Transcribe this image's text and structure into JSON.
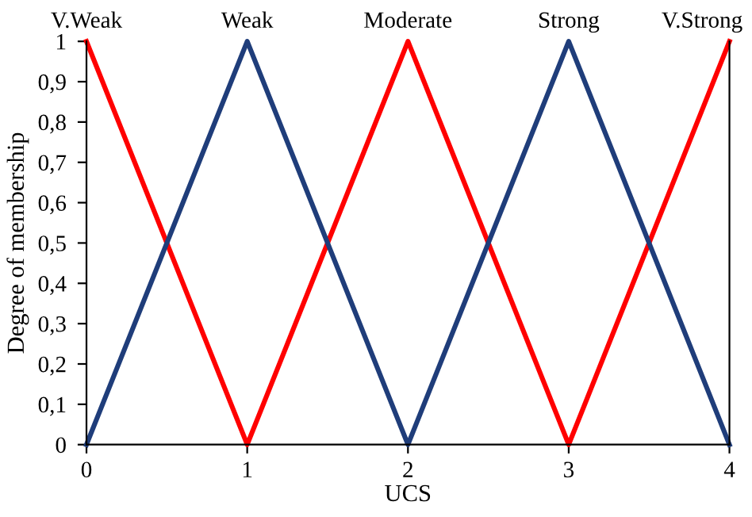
{
  "chart_data": {
    "type": "line",
    "xlabel": "UCS",
    "ylabel": "Degree of membership",
    "x": [
      0,
      1,
      2,
      3,
      4
    ],
    "series": [
      {
        "color": "#ff0000",
        "values": [
          1,
          0,
          1,
          0,
          1
        ]
      },
      {
        "color": "#1f3d7a",
        "values": [
          0,
          1,
          0,
          1,
          0
        ]
      }
    ],
    "xlim": [
      0,
      4
    ],
    "ylim": [
      0,
      1
    ],
    "xticks": [
      0,
      1,
      2,
      3,
      4
    ],
    "yticks": [
      0,
      {
        "value": 0.1,
        "label": "0,1"
      },
      {
        "value": 0.2,
        "label": "0,2"
      },
      {
        "value": 0.3,
        "label": "0,3"
      },
      {
        "value": 0.4,
        "label": "0,4"
      },
      {
        "value": 0.5,
        "label": "0,5"
      },
      {
        "value": 0.6,
        "label": "0,6"
      },
      {
        "value": 0.7,
        "label": "0,7"
      },
      {
        "value": 0.8,
        "label": "0,8"
      },
      {
        "value": 0.9,
        "label": "0,9"
      },
      1
    ],
    "annotations": [
      {
        "text": "V.Weak",
        "x": 0,
        "y": 1
      },
      {
        "text": "Weak",
        "x": 1,
        "y": 1
      },
      {
        "text": "Moderate",
        "x": 2,
        "y": 1
      },
      {
        "text": "Strong",
        "x": 3,
        "y": 1
      },
      {
        "text": "V.Strong",
        "x": 4,
        "y": 1
      }
    ],
    "grid": false,
    "legend": false,
    "marker": "none",
    "line_style": "solid"
  }
}
